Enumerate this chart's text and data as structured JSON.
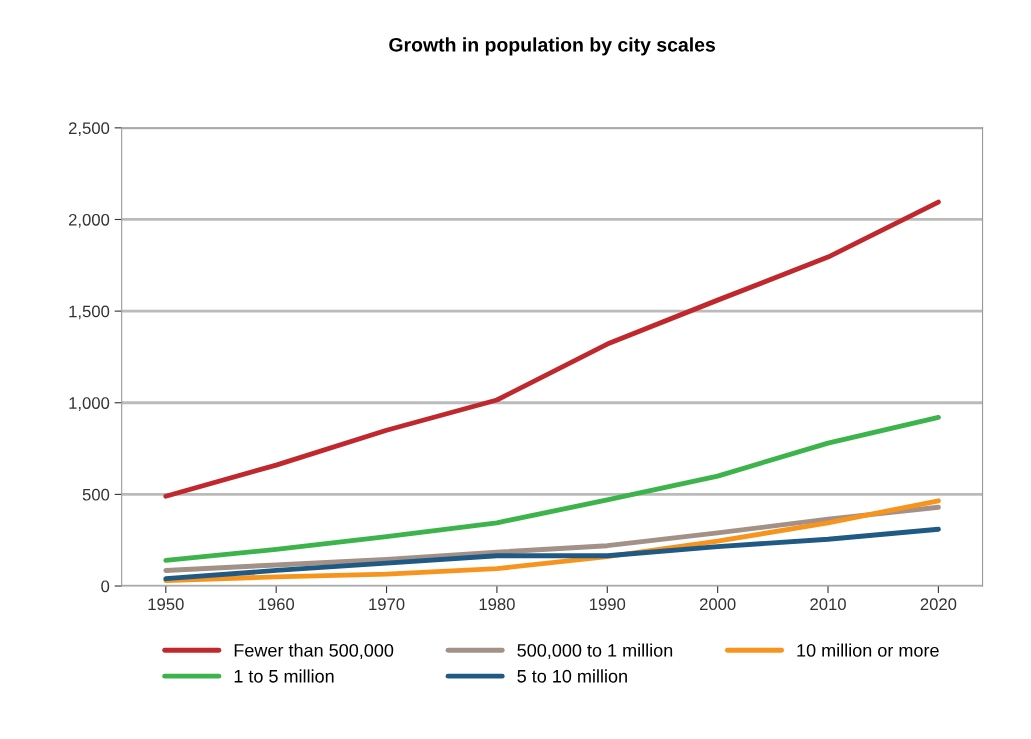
{
  "chart_data": {
    "type": "line",
    "title": "Growth in population by city scales",
    "x": [
      1950,
      1960,
      1970,
      1980,
      1990,
      2000,
      2010,
      2020
    ],
    "series": [
      {
        "name": "Fewer than 500,000",
        "color": "#c0282d",
        "values": [
          490,
          660,
          850,
          1015,
          1320,
          1560,
          1795,
          2095
        ]
      },
      {
        "name": "500,000 to 1 million",
        "color": "#a39188",
        "values": [
          85,
          115,
          145,
          185,
          220,
          290,
          365,
          430
        ]
      },
      {
        "name": "10 million or more",
        "color": "#f7941d",
        "values": [
          30,
          50,
          65,
          95,
          160,
          245,
          345,
          465
        ]
      },
      {
        "name": "1 to 5 million",
        "color": "#3cb44b",
        "values": [
          140,
          200,
          270,
          345,
          470,
          600,
          780,
          920
        ]
      },
      {
        "name": "5 to 10 million",
        "color": "#1f5a85",
        "values": [
          40,
          85,
          125,
          165,
          165,
          215,
          255,
          310
        ]
      }
    ],
    "xlim": [
      1946,
      2024
    ],
    "xticks": [
      1950,
      1960,
      1970,
      1980,
      1990,
      2000,
      2010,
      2020
    ],
    "ylim": [
      0,
      2500
    ],
    "yticks": [
      {
        "value": 0,
        "label": "0"
      },
      {
        "value": 500,
        "label": "500"
      },
      {
        "value": 1000,
        "label": "1,000"
      },
      {
        "value": 1500,
        "label": "1,500"
      },
      {
        "value": 2000,
        "label": "2,000"
      },
      {
        "value": 2500,
        "label": "2,500"
      }
    ],
    "grid": "y",
    "legend": "bottom",
    "marker": "none",
    "line_style": "solid"
  }
}
